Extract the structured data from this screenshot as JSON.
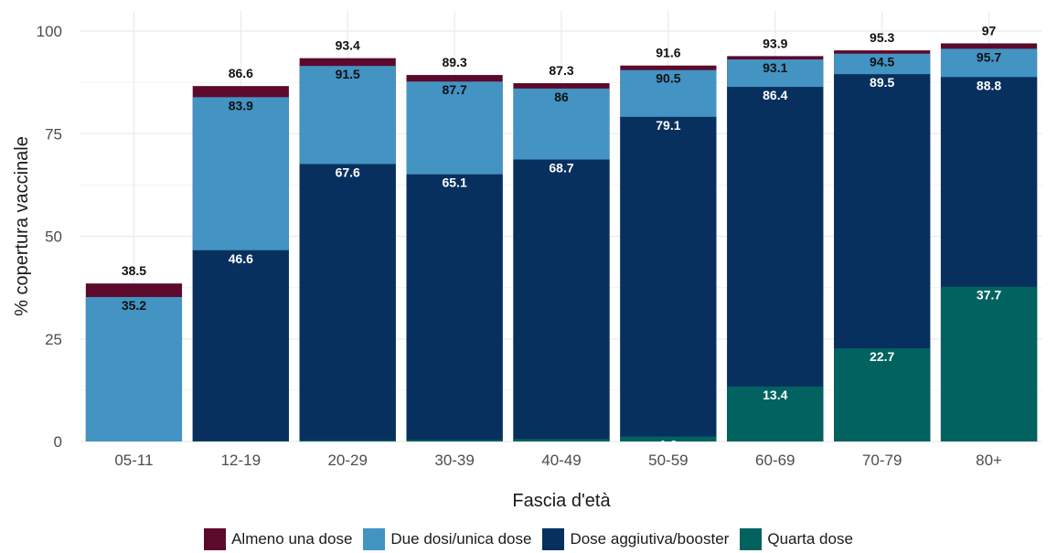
{
  "chart_data": {
    "type": "bar",
    "stacked": "overlay",
    "xlabel": "Fascia d'età",
    "ylabel": "% copertura vaccinale",
    "ylim": [
      0,
      100
    ],
    "yticks": [
      0,
      25,
      50,
      75,
      100
    ],
    "grid": true,
    "legend_position": "bottom",
    "categories": [
      "05-11",
      "12-19",
      "20-29",
      "30-39",
      "40-49",
      "50-59",
      "60-69",
      "70-79",
      "80+"
    ],
    "series": [
      {
        "name": "Almeno una dose",
        "color": "#5c0a2c",
        "label_color": "#111111",
        "values": [
          38.5,
          86.6,
          93.4,
          89.3,
          87.3,
          91.6,
          93.9,
          95.3,
          97
        ]
      },
      {
        "name": "Due dosi/unica dose",
        "color": "#4393c3",
        "label_color": "#111111",
        "values": [
          35.2,
          83.9,
          91.5,
          87.7,
          86,
          90.5,
          93.1,
          94.5,
          95.7
        ]
      },
      {
        "name": "Dose aggiutiva/booster",
        "color": "#08305e",
        "label_color": "#ffffff",
        "values": [
          null,
          46.6,
          67.6,
          65.1,
          68.7,
          79.1,
          86.4,
          89.5,
          88.8
        ]
      },
      {
        "name": "Quarta dose",
        "color": "#02625f",
        "label_color": "#ffffff",
        "values": [
          null,
          0.1,
          0.3,
          0.4,
          0.6,
          1.2,
          13.4,
          22.7,
          37.7
        ]
      }
    ]
  }
}
